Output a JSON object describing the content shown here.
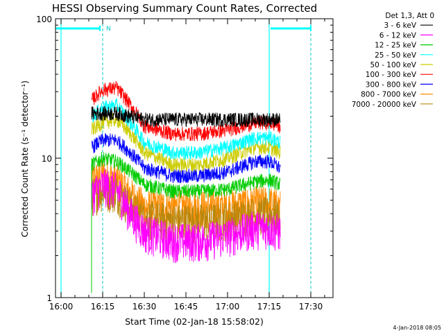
{
  "chart_data": {
    "type": "line",
    "title": "HESSI Observing Summary Count Rates, Corrected",
    "xlabel": "Start Time (02-Jan-18 15:58:02)",
    "ylabel": "Corrected Count Rate (s⁻¹ detector⁻¹)",
    "y_scale": "log",
    "ylim": [
      1,
      100
    ],
    "xlim_minutes": [
      -2,
      38
    ],
    "x_ticks": [
      "16:00",
      "16:15",
      "16:30",
      "16:45",
      "17:00",
      "17:15",
      "17:30"
    ],
    "x_tick_minutes": [
      0,
      15,
      30,
      45,
      60,
      75,
      90
    ],
    "y_ticks": [
      "1",
      "10",
      "100"
    ],
    "y_tick_values": [
      1,
      10,
      100
    ],
    "legend_title": "Det 1,3, Att 0",
    "legend_position": "top-right outside",
    "footer_date": "4-Jan-2018 08:05",
    "night_label": "N",
    "night_marker_minutes": [
      -2,
      15
    ],
    "day_boundaries_minutes": [
      0,
      15,
      75,
      90
    ],
    "data_range_minutes": [
      11,
      79
    ],
    "series": [
      {
        "name": "3 - 6 keV",
        "color": "#000000",
        "x": [
          11,
          15,
          20,
          25,
          30,
          40,
          50,
          60,
          70,
          75,
          79
        ],
        "y": [
          21,
          21,
          21,
          20,
          19,
          19,
          19,
          19,
          19,
          19,
          19
        ]
      },
      {
        "name": "6 - 12 keV",
        "color": "#ff00ff",
        "x": [
          11,
          15,
          20,
          25,
          30,
          40,
          50,
          60,
          70,
          75,
          79
        ],
        "y": [
          5.5,
          6.5,
          6.0,
          4.0,
          3.0,
          2.6,
          2.6,
          2.8,
          3.2,
          3.2,
          3.0
        ]
      },
      {
        "name": "12 - 25 keV",
        "color": "#00cc00",
        "x": [
          11,
          15,
          20,
          25,
          30,
          40,
          50,
          60,
          70,
          75,
          79
        ],
        "y": [
          9.0,
          10.0,
          9.5,
          8.0,
          6.5,
          5.8,
          5.8,
          6.0,
          6.8,
          7.0,
          6.5
        ]
      },
      {
        "name": "25 - 50 keV",
        "color": "#00ffff",
        "x": [
          11,
          15,
          20,
          25,
          30,
          40,
          50,
          60,
          70,
          75,
          79
        ],
        "y": [
          20,
          23,
          24,
          18,
          13,
          11,
          11,
          12,
          14,
          14,
          13
        ]
      },
      {
        "name": "50 - 100 keV",
        "color": "#cccc00",
        "x": [
          11,
          15,
          20,
          25,
          30,
          40,
          50,
          60,
          70,
          75,
          79
        ],
        "y": [
          16,
          18,
          19,
          15,
          11,
          9,
          9,
          10,
          12,
          12,
          11
        ]
      },
      {
        "name": "100 - 300 keV",
        "color": "#ff0000",
        "x": [
          11,
          15,
          20,
          25,
          30,
          40,
          50,
          60,
          70,
          75,
          79
        ],
        "y": [
          26,
          31,
          32,
          24,
          17,
          15,
          15,
          16,
          18,
          18,
          17
        ]
      },
      {
        "name": "300 - 800 keV",
        "color": "#0000ff",
        "x": [
          11,
          15,
          20,
          25,
          30,
          40,
          50,
          60,
          70,
          75,
          79
        ],
        "y": [
          12,
          13.5,
          13.5,
          11,
          8.5,
          7.5,
          7.5,
          8,
          9.5,
          9.5,
          8.5
        ]
      },
      {
        "name": "800 - 7000 keV",
        "color": "#ff8c00",
        "x": [
          11,
          15,
          20,
          25,
          30,
          40,
          50,
          60,
          70,
          75,
          79
        ],
        "y": [
          7.0,
          7.5,
          7.0,
          5.5,
          4.5,
          4.5,
          4.5,
          4.5,
          4.8,
          4.8,
          4.5
        ]
      },
      {
        "name": "7000 - 20000 keV",
        "color": "#b8860b",
        "x": [
          11,
          15,
          20,
          25,
          30,
          40,
          50,
          60,
          70,
          75,
          79
        ],
        "y": [
          5.5,
          6.0,
          5.8,
          4.5,
          3.8,
          3.6,
          3.6,
          3.7,
          4.0,
          4.0,
          3.8
        ]
      }
    ]
  },
  "colors": {
    "axis": "#000000",
    "day_line": "#00ffff",
    "day_dash": "#00c8c8"
  }
}
